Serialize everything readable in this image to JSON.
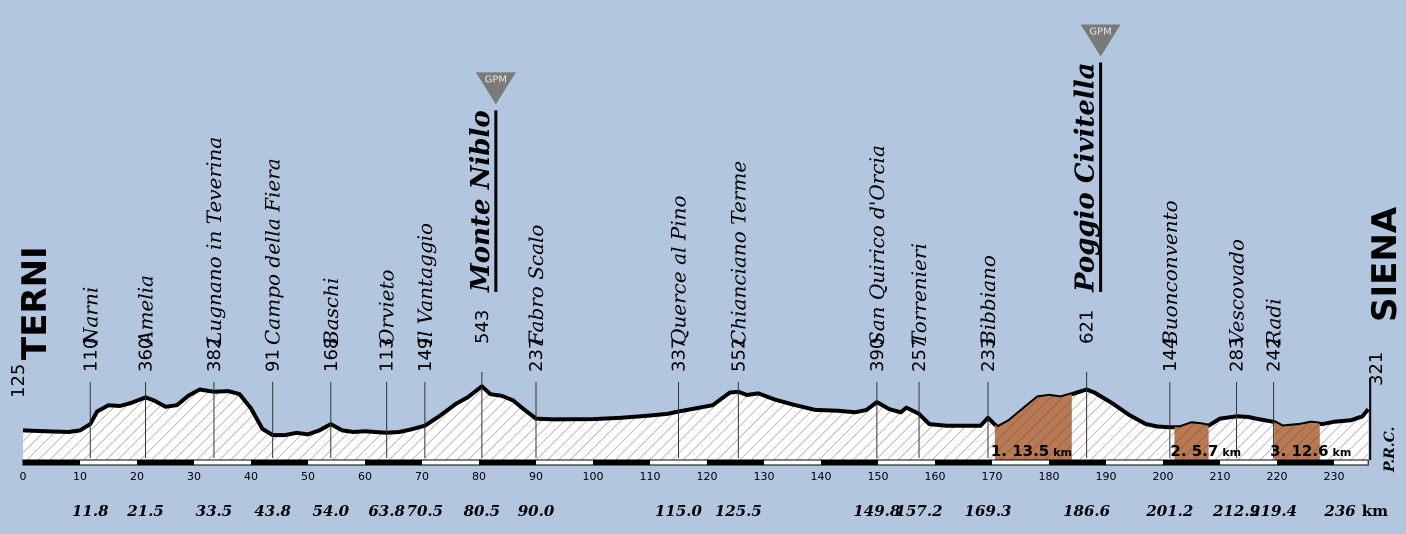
{
  "chart_data": {
    "type": "area",
    "title": "",
    "xlabel": "",
    "ylabel": "",
    "xlim": [
      0,
      236
    ],
    "ylim": [
      0,
      650
    ],
    "unit_km": "km",
    "copyright": "P.R.C.",
    "axis_ticks": [
      0,
      10,
      20,
      30,
      40,
      50,
      60,
      70,
      80,
      90,
      100,
      110,
      120,
      130,
      140,
      150,
      160,
      170,
      180,
      190,
      200,
      210,
      220,
      230
    ],
    "start": {
      "name": "TERNI",
      "alt": "125"
    },
    "finish": {
      "name": "SIENA",
      "alt": "321"
    },
    "places": [
      {
        "name": "Narni",
        "alt": "110",
        "km": 11.8,
        "km_label": "11.8"
      },
      {
        "name": "Amelia",
        "alt": "360",
        "km": 21.5,
        "km_label": "21.5"
      },
      {
        "name": "Lugnano in Teverina",
        "alt": "382",
        "km": 33.5,
        "km_label": "33.5"
      },
      {
        "name": "Campo della Fiera",
        "alt": "91",
        "km": 43.8,
        "km_label": "43.8"
      },
      {
        "name": "Baschi",
        "alt": "168",
        "km": 54.0,
        "km_label": "54.0"
      },
      {
        "name": "Orvieto",
        "alt": "113",
        "km": 63.8,
        "km_label": "63.8"
      },
      {
        "name": "Il Vantaggio",
        "alt": "149",
        "km": 70.5,
        "km_label": "70.5"
      },
      {
        "name": "Monte Niblo",
        "alt": "543",
        "km": 80.5,
        "km_label": "80.5",
        "gpm": true
      },
      {
        "name": "Fabro Scalo",
        "alt": "237",
        "km": 90.0,
        "km_label": "90.0"
      },
      {
        "name": "Querce al Pino",
        "alt": "337",
        "km": 115.0,
        "km_label": "115.0"
      },
      {
        "name": "Chianciano Terme",
        "alt": "552",
        "km": 125.5,
        "km_label": "125.5"
      },
      {
        "name": "San Quirico d'Orcia",
        "alt": "390",
        "km": 149.8,
        "km_label": "149.8"
      },
      {
        "name": "Torrenieri",
        "alt": "257",
        "km": 157.2,
        "km_label": "157.2"
      },
      {
        "name": "Bibbiano",
        "alt": "233",
        "km": 169.3,
        "km_label": "169.3"
      },
      {
        "name": "Poggio Civitella",
        "alt": "621",
        "km": 186.6,
        "km_label": "186.6",
        "gpm": true
      },
      {
        "name": "Buonconvento",
        "alt": "144",
        "km": 201.2,
        "km_label": "201.2"
      },
      {
        "name": "Vescovado",
        "alt": "283",
        "km": 212.9,
        "km_label": "212.9"
      },
      {
        "name": "Radi",
        "alt": "242",
        "km": 219.4,
        "km_label": "219.4"
      }
    ],
    "finish_km_label": "236",
    "gpm_label": "GPM",
    "sectors": [
      {
        "num": "1.",
        "len": "13.5",
        "unit": "km",
        "from": 170.5,
        "to": 184
      },
      {
        "num": "2.",
        "len": "5.7",
        "unit": "km",
        "from": 202,
        "to": 208
      },
      {
        "num": "3.",
        "len": "12.6",
        "unit": "km",
        "from": 219.5,
        "to": 227.5
      }
    ],
    "profile": [
      [
        0,
        110
      ],
      [
        4,
        105
      ],
      [
        8,
        100
      ],
      [
        10,
        110
      ],
      [
        11.8,
        150
      ],
      [
        13,
        230
      ],
      [
        15,
        270
      ],
      [
        17,
        265
      ],
      [
        19,
        285
      ],
      [
        21.5,
        320
      ],
      [
        23,
        300
      ],
      [
        25,
        260
      ],
      [
        27,
        270
      ],
      [
        29,
        330
      ],
      [
        31,
        370
      ],
      [
        33.5,
        355
      ],
      [
        36,
        360
      ],
      [
        38,
        340
      ],
      [
        40,
        250
      ],
      [
        42,
        120
      ],
      [
        43.8,
        80
      ],
      [
        46,
        80
      ],
      [
        48,
        95
      ],
      [
        50,
        85
      ],
      [
        52,
        110
      ],
      [
        54,
        150
      ],
      [
        56,
        110
      ],
      [
        58,
        100
      ],
      [
        60,
        105
      ],
      [
        63.8,
        95
      ],
      [
        66,
        100
      ],
      [
        68,
        115
      ],
      [
        70.5,
        140
      ],
      [
        73,
        200
      ],
      [
        76,
        280
      ],
      [
        78,
        320
      ],
      [
        80.5,
        390
      ],
      [
        82,
        340
      ],
      [
        84,
        330
      ],
      [
        86,
        300
      ],
      [
        88,
        240
      ],
      [
        90,
        185
      ],
      [
        93,
        180
      ],
      [
        100,
        182
      ],
      [
        105,
        190
      ],
      [
        110,
        205
      ],
      [
        113,
        215
      ],
      [
        115,
        230
      ],
      [
        118,
        250
      ],
      [
        121,
        270
      ],
      [
        124,
        350
      ],
      [
        125.5,
        355
      ],
      [
        127,
        335
      ],
      [
        129,
        345
      ],
      [
        132,
        305
      ],
      [
        135,
        275
      ],
      [
        139,
        240
      ],
      [
        143,
        235
      ],
      [
        146,
        225
      ],
      [
        148,
        240
      ],
      [
        149.8,
        290
      ],
      [
        152,
        245
      ],
      [
        154,
        225
      ],
      [
        155,
        255
      ],
      [
        157.2,
        215
      ],
      [
        159,
        150
      ],
      [
        162,
        140
      ],
      [
        166,
        140
      ],
      [
        168,
        140
      ],
      [
        169.3,
        190
      ],
      [
        171,
        130
      ],
      [
        173,
        170
      ],
      [
        176,
        260
      ],
      [
        178,
        320
      ],
      [
        180,
        330
      ],
      [
        182,
        320
      ],
      [
        184,
        340
      ],
      [
        186.6,
        370
      ],
      [
        188,
        350
      ],
      [
        191,
        285
      ],
      [
        194,
        210
      ],
      [
        197,
        150
      ],
      [
        199,
        135
      ],
      [
        201.2,
        130
      ],
      [
        203,
        130
      ],
      [
        205,
        155
      ],
      [
        206.5,
        150
      ],
      [
        208,
        140
      ],
      [
        210,
        185
      ],
      [
        212.9,
        200
      ],
      [
        215,
        195
      ],
      [
        217,
        180
      ],
      [
        219.4,
        165
      ],
      [
        221,
        135
      ],
      [
        224,
        145
      ],
      [
        226,
        160
      ],
      [
        228,
        150
      ],
      [
        230,
        165
      ],
      [
        233,
        175
      ],
      [
        235,
        200
      ],
      [
        236,
        245
      ]
    ]
  }
}
